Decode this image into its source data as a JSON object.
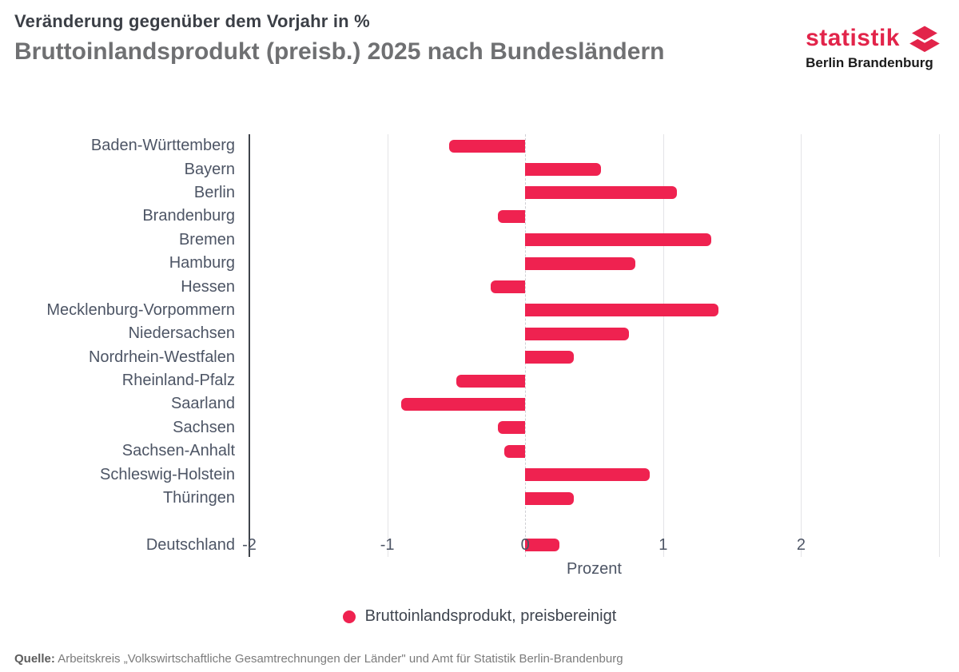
{
  "header": {
    "kicker": "Veränderung gegenüber dem Vorjahr in %",
    "title": "Bruttoinlandsprodukt (preisb.) 2025 nach Bundesländern",
    "logo": {
      "brand": "statistik",
      "sub": "Berlin Brandenburg",
      "accent_color": "#e2244a"
    }
  },
  "chart_data": {
    "type": "bar",
    "orientation": "horizontal",
    "title": "Bruttoinlandsprodukt (preisb.) 2025 nach Bundesländern",
    "subtitle": "Veränderung gegenüber dem Vorjahr in %",
    "categories": [
      "Baden-Württemberg",
      "Bayern",
      "Berlin",
      "Brandenburg",
      "Bremen",
      "Hamburg",
      "Hessen",
      "Mecklenburg-Vorpommern",
      "Niedersachsen",
      "Nordrhein-Westfalen",
      "Rheinland-Pfalz",
      "Saarland",
      "Sachsen",
      "Sachsen-Anhalt",
      "Schleswig-Holstein",
      "Thüringen",
      "Deutschland"
    ],
    "values": [
      -0.55,
      0.55,
      1.1,
      -0.2,
      1.35,
      0.8,
      -0.25,
      1.4,
      0.75,
      0.35,
      -0.5,
      -0.9,
      -0.2,
      -0.15,
      0.9,
      0.35,
      0.25
    ],
    "gap_before_last": true,
    "xlabel": "Prozent",
    "x_ticks": [
      -2,
      -1,
      0,
      1,
      2
    ],
    "grid_values": [
      -2,
      -1,
      0,
      1,
      2,
      3
    ],
    "xlim": [
      -2,
      3
    ],
    "grid": true,
    "bar_color": "#ef2250",
    "legend_position": "bottom"
  },
  "legend": {
    "label": "Bruttoinlandsprodukt, preisbereinigt",
    "marker_color": "#ef2250"
  },
  "source": {
    "prefix": "Quelle:",
    "text": "Arbeitskreis „Volkswirtschaftliche Gesamtrechnungen der Länder\" und Amt für Statistik Berlin-Brandenburg"
  }
}
